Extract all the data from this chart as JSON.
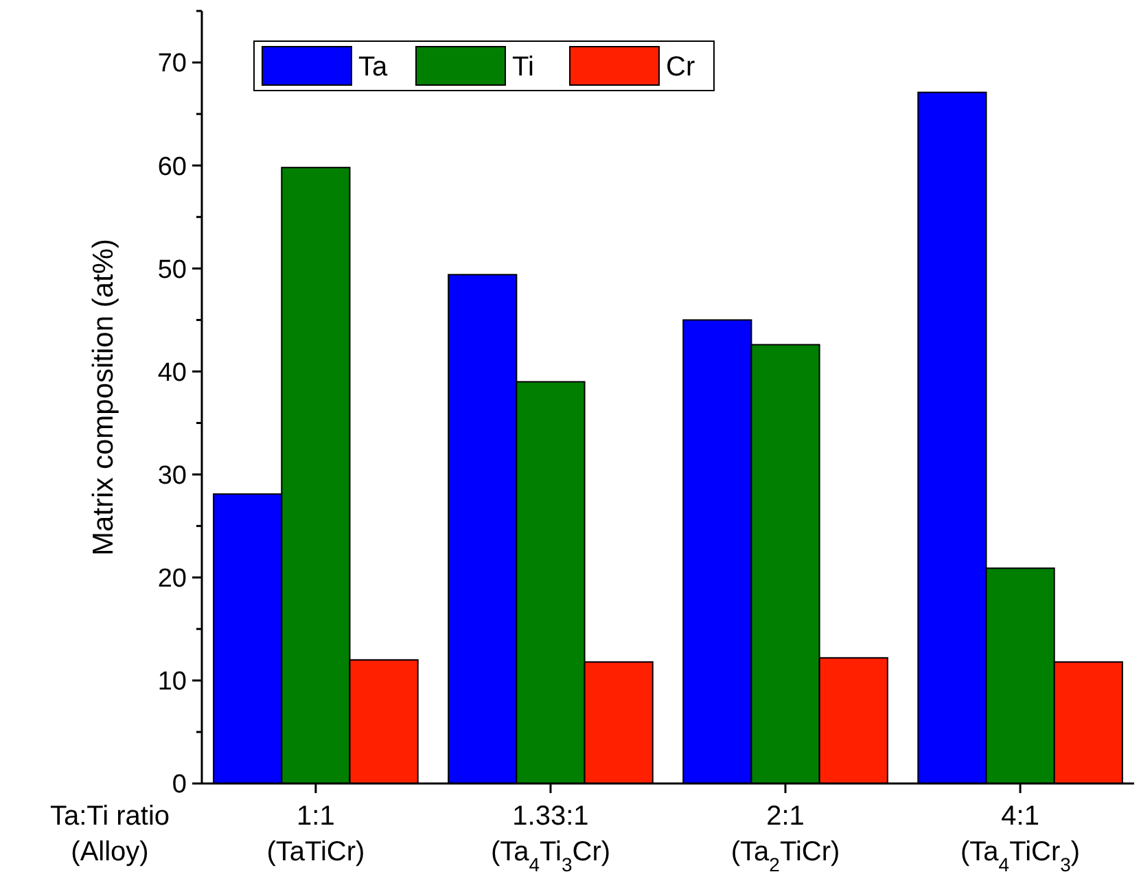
{
  "chart_data": {
    "type": "bar",
    "ylabel": "Matrix composition (at%)",
    "xlabel": "Ta:Ti ratio\n(Alloy)",
    "categories": [
      "1:1\n(TaTiCr)",
      "1.33:1\n(Ta$_{4}$Ti$_{3}$Cr)",
      "2:1\n(Ta$_{2}$TiCr)",
      "4:1\n(Ta$_{4}$TiCr$_{3}$)"
    ],
    "series": [
      {
        "name": "Ta",
        "color": "#0000ff",
        "values": [
          28.1,
          49.4,
          45.0,
          67.1
        ]
      },
      {
        "name": "Ti",
        "color": "#007f00",
        "values": [
          59.8,
          39.0,
          42.6,
          20.9
        ]
      },
      {
        "name": "Cr",
        "color": "#ff2000",
        "values": [
          12.0,
          11.8,
          12.2,
          11.8
        ]
      }
    ],
    "ylim": [
      0,
      75
    ],
    "yticks": [
      0,
      {
        "value": 5,
        "label": null
      },
      10,
      {
        "value": 15,
        "label": null
      },
      20,
      {
        "value": 25,
        "label": null
      },
      30,
      {
        "value": 35,
        "label": null
      },
      40,
      {
        "value": 45,
        "label": null
      },
      50,
      {
        "value": 55,
        "label": null
      },
      60,
      {
        "value": 65,
        "label": null
      },
      70,
      {
        "value": 75,
        "label": null
      }
    ],
    "grid": false,
    "legend": "top left"
  }
}
